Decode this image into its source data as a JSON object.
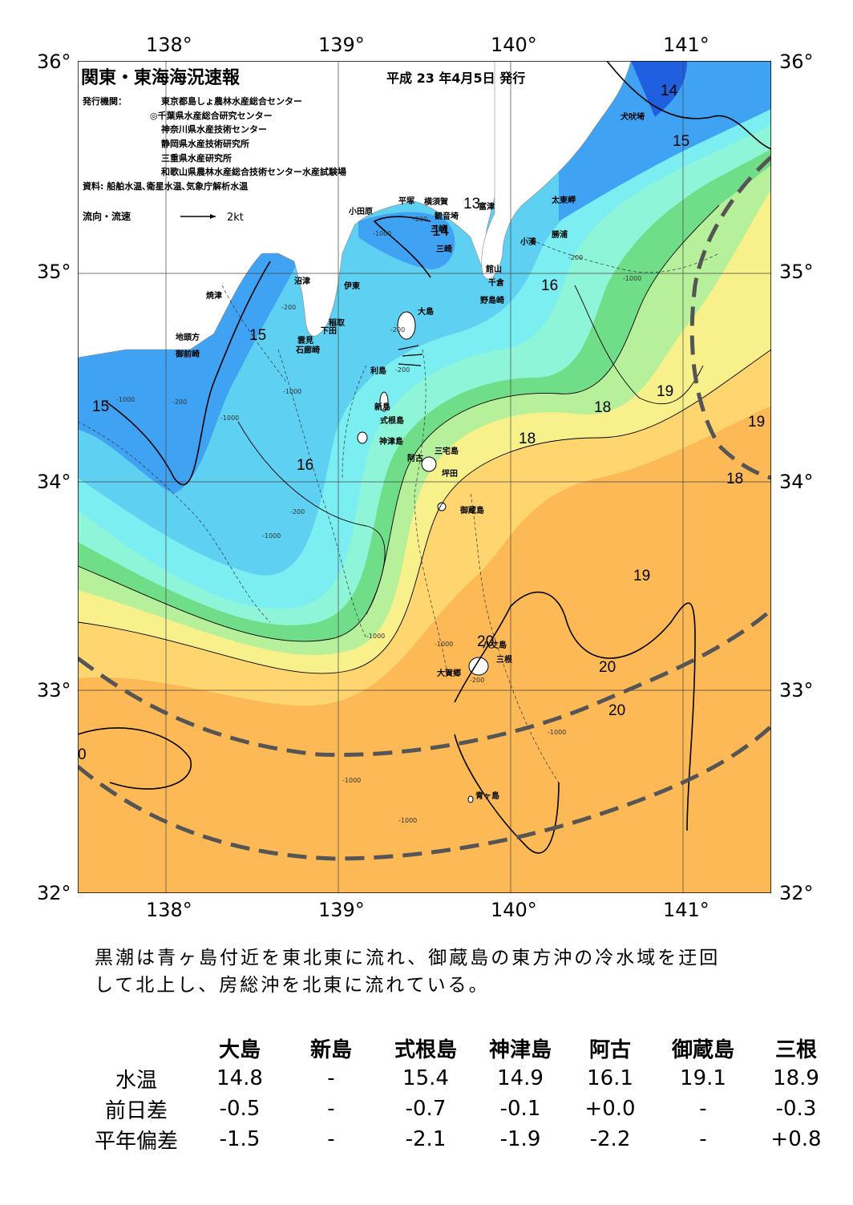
{
  "header": {
    "title": "関東・東海海況速報",
    "date": "平成 23 年4月5日 発行",
    "publisher_label": "発行機関：",
    "publishers": [
      "東京都島しょ農林水産総合センター",
      "◎千葉県水産総合研究センター",
      "神奈川県水産技術センター",
      "静岡県水産技術研究所",
      "三重県水産研究所",
      "和歌山県農林水産総合技術センター水産試験場"
    ],
    "source": "資料: 船舶水温､衛星水温､気象庁解析水温",
    "flow_label": "流向・流速",
    "flow_scale": "2kt"
  },
  "axes": {
    "lon_top": [
      "138°",
      "139°",
      "140°",
      "141°"
    ],
    "lon_bottom": [
      "138°",
      "139°",
      "140°",
      "141°"
    ],
    "lat_left": [
      "36°",
      "35°",
      "34°",
      "33°",
      "32°"
    ],
    "lat_right": [
      "36°",
      "35°",
      "34°",
      "33°",
      "32°"
    ]
  },
  "places": {
    "inubozaki": "犬吠埼",
    "taitozaki": "太東岬",
    "katsuura": "勝浦",
    "kominato": "小湊",
    "futtsu": "富津",
    "kannonzaki": "観音埼",
    "yokosuka": "横須賀",
    "hiratsuka": "平塚",
    "odawara": "小田原",
    "misaki": "三崎",
    "tateyama": "館山",
    "chikura": "千倉",
    "nojimazaki": "野島崎",
    "numazu": "沼津",
    "ito": "伊東",
    "inatori": "稲取",
    "shimoda": "下田",
    "mera": "雲見",
    "irozaki": "石廊崎",
    "yaizu": "焼津",
    "jitokata": "地頭方",
    "omaezaki": "御前崎",
    "oshima": "大島",
    "toshima": "利島",
    "niijima": "新島",
    "shikinejima": "式根島",
    "kozushima": "神津島",
    "ako": "阿古",
    "miyakejima": "三宅島",
    "tsubota": "坪田",
    "mikurajima": "御蔵島",
    "hachijo": "八丈島",
    "mitsune": "三根",
    "okago": "大賀郷",
    "aogashima": "青ヶ島"
  },
  "temperature_labels": [
    "14",
    "15",
    "13",
    "14",
    "15",
    "15",
    "16",
    "16",
    "19",
    "19",
    "18",
    "18",
    "18",
    "19",
    "20",
    "20",
    "20",
    "0"
  ],
  "depth_labels": [
    "-200",
    "-1000",
    "-200",
    "-1000",
    "-200",
    "-1000",
    "-1000",
    "-200",
    "-1000",
    "-200",
    "-1000",
    "-1000",
    "-200",
    "-1000",
    "-200",
    "-1000",
    "-1000",
    "-1000",
    "-200"
  ],
  "summary": [
    "黒潮は青ヶ島付近を東北東に流れ、御蔵島の東方沖の冷水域を迂回",
    "して北上し、房総沖を北東に流れている。"
  ],
  "table": {
    "columns": [
      "大島",
      "新島",
      "式根島",
      "神津島",
      "阿古",
      "御蔵島",
      "三根"
    ],
    "rows": [
      {
        "label": "水温",
        "values": [
          "14.8",
          "-",
          "15.4",
          "14.9",
          "16.1",
          "19.1",
          "18.9"
        ]
      },
      {
        "label": "前日差",
        "values": [
          "-0.5",
          "-",
          "-0.7",
          "-0.1",
          "+0.0",
          "-",
          "-0.3"
        ]
      },
      {
        "label": "平年偏差",
        "values": [
          "-1.5",
          "-",
          "-2.1",
          "-1.9",
          "-2.2",
          "-",
          "+0.8"
        ]
      }
    ]
  },
  "colors": {
    "deep_blue": "#1f5fe0",
    "blue": "#3fa2f2",
    "sky": "#5ed0f2",
    "cyan": "#7aeef0",
    "aqua": "#8ff5d8",
    "green": "#70dd88",
    "pale_green": "#b6f09a",
    "yellow": "#f8f08a",
    "light_orange": "#ffd570",
    "orange": "#fcb956",
    "dark_orange": "#f99a2c",
    "land": "#ffffff"
  }
}
